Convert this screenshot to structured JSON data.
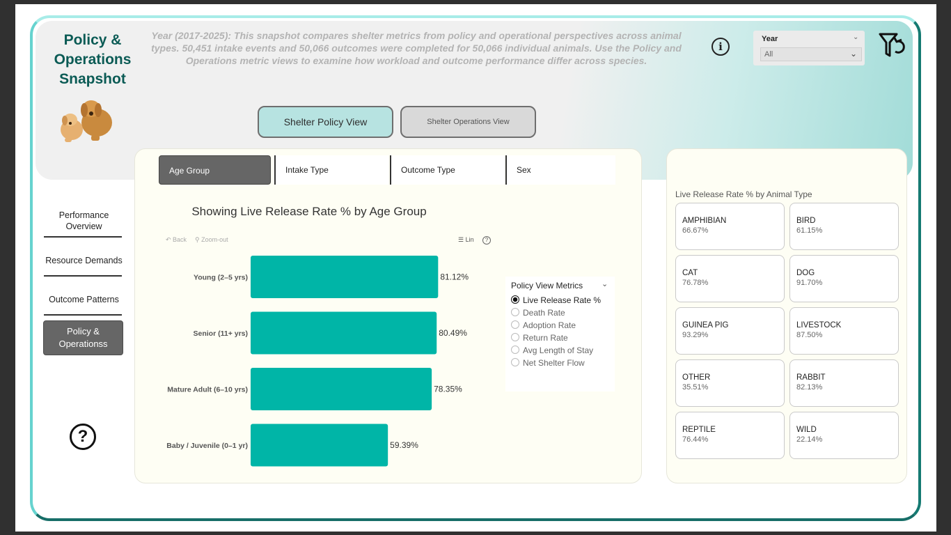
{
  "header": {
    "title": "Policy & Operations Snapshot",
    "subtitle": "Year (2017-2025): This snapshot compares shelter metrics from policy and operational perspectives across animal types. 50,451 intake events and 50,066 outcomes were completed for 50,066 individual animals. Use the Policy and Operations metric views to examine how workload and outcome performance differ across species."
  },
  "filter": {
    "label": "Year",
    "value": "All"
  },
  "views": {
    "policy": "Shelter Policy View",
    "operations": "Shelter Operations View"
  },
  "nav": {
    "items": [
      "Performance Overview",
      "Resource Demands",
      "Outcome Patterns",
      "Policy & Operationss"
    ],
    "active_index": 3
  },
  "tabs": [
    "Age Group",
    "Intake Type",
    "Outcome Type",
    "Sex"
  ],
  "toolbar": {
    "back": "Back",
    "zoom": "Zoom-out",
    "scale": "Lin"
  },
  "metrics": {
    "title": "Policy View Metrics",
    "options": [
      "Live Release Rate %",
      "Death Rate",
      "Adoption Rate",
      "Return Rate",
      "Avg Length of Stay",
      "Net Shelter Flow"
    ],
    "selected": 0
  },
  "chart_data": {
    "type": "bar",
    "orientation": "horizontal",
    "title": "Showing Live Release Rate % by Age Group",
    "categories": [
      "Young (2–5 yrs)",
      "Senior (11+ yrs)",
      "Mature Adult (6–10 yrs)",
      "Baby / Juvenile (0–1 yr)"
    ],
    "values": [
      81.12,
      80.49,
      78.35,
      59.39
    ],
    "labels": [
      "81.12%",
      "80.49%",
      "78.35%",
      "59.39%"
    ],
    "color": "#00b5a7"
  },
  "animal_types": {
    "title": "Live Release Rate % by Animal Type",
    "cards": [
      {
        "name": "AMPHIBIAN",
        "value": "66.67%"
      },
      {
        "name": "BIRD",
        "value": "61.15%"
      },
      {
        "name": "CAT",
        "value": "76.78%"
      },
      {
        "name": "DOG",
        "value": "91.70%"
      },
      {
        "name": "GUINEA PIG",
        "value": "93.29%"
      },
      {
        "name": "LIVESTOCK",
        "value": "87.50%"
      },
      {
        "name": "OTHER",
        "value": "35.51%"
      },
      {
        "name": "RABBIT",
        "value": "82.13%"
      },
      {
        "name": "REPTILE",
        "value": "76.44%"
      },
      {
        "name": "WILD",
        "value": "22.14%"
      }
    ]
  },
  "colors": {
    "accent": "#00b5a7",
    "title": "#0b5b55",
    "frame": "#3fb4ad"
  }
}
